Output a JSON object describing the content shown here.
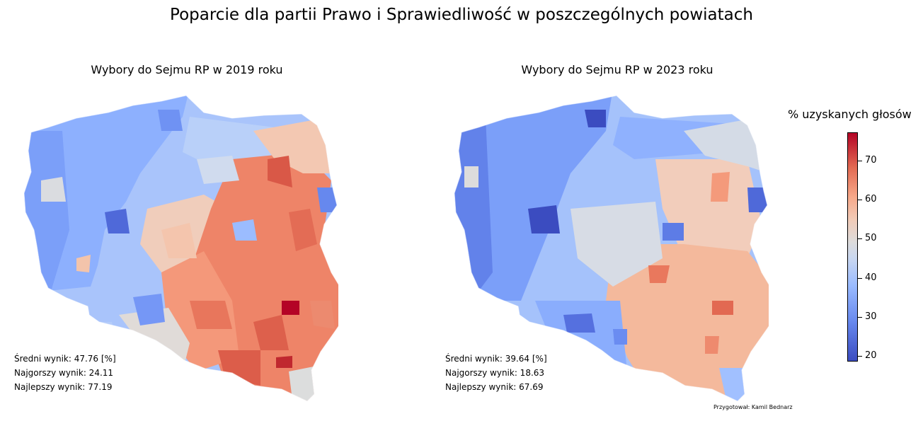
{
  "main_title": "Poparcie dla partii Prawo i Sprawiedliwość w poszczególnych powiatach",
  "maps": [
    {
      "title": "Wybory do Sejmu RP w 2019 roku",
      "stats": [
        "Średni wynik: 47.76 [%]",
        "Najgorszy wynik: 24.11",
        "Najlepszy wynik: 77.19"
      ],
      "mean": 47.76,
      "min": 24.11,
      "max": 77.19
    },
    {
      "title": "Wybory do Sejmu RP w 2023 roku",
      "stats": [
        "Średni wynik: 39.64 [%]",
        "Najgorszy wynik: 18.63",
        "Najlepszy wynik: 67.69"
      ],
      "mean": 39.64,
      "min": 18.63,
      "max": 67.69
    }
  ],
  "colorbar": {
    "title": "% uzyskanych głosów",
    "range": [
      18.63,
      77.19
    ],
    "ticks": [
      "20",
      "30",
      "40",
      "50",
      "60",
      "70"
    ],
    "tick_values": [
      20,
      30,
      40,
      50,
      60,
      70
    ],
    "colormap": "coolwarm",
    "low_color": "#3b4cc0",
    "mid_color": "#dddcdc",
    "high_color": "#b40426"
  },
  "credit": "Przygotował: Kamil Bednarz"
}
